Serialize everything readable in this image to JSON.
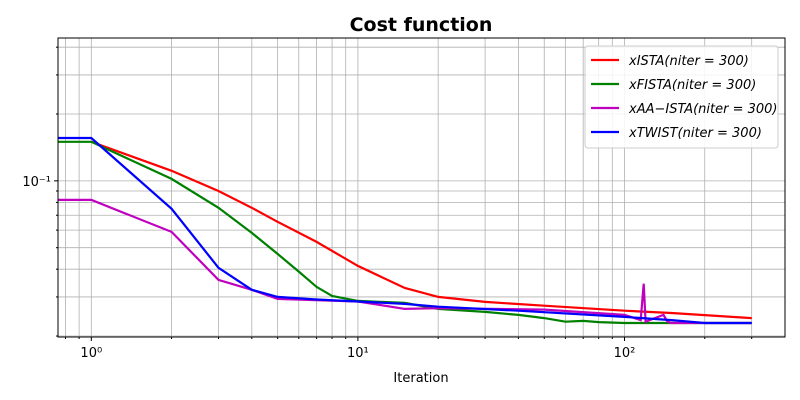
{
  "chart_data": {
    "type": "line",
    "title": "Cost function",
    "x_label": "Iteration",
    "xscale": "log",
    "yscale": "log",
    "grid": "both",
    "legend": "upper right",
    "xlim": [
      0.75,
      400
    ],
    "ylim": [
      0.0198,
      0.44
    ],
    "xticks": [
      {
        "value": 1,
        "label": "10⁰"
      },
      {
        "value": 10,
        "label": "10¹"
      },
      {
        "value": 100,
        "label": "10²"
      }
    ],
    "yticks": [
      {
        "value": 0.1,
        "label": "10⁻¹"
      }
    ],
    "series": [
      {
        "name": "xISTA(niter = 300)",
        "color": "#ff0000",
        "x": [
          1,
          2,
          3,
          4,
          5,
          7,
          10,
          15,
          20,
          30,
          50,
          100,
          150,
          300
        ],
        "values": [
          0.15,
          0.111,
          0.09,
          0.0756,
          0.0654,
          0.0531,
          0.0414,
          0.0329,
          0.03,
          0.0285,
          0.0274,
          0.026,
          0.0254,
          0.0241
        ]
      },
      {
        "name": "xFISTA(niter = 300)",
        "color": "#008000",
        "x": [
          0.75,
          1,
          2,
          3,
          4,
          5,
          6,
          7,
          8,
          10,
          15,
          20,
          30,
          40,
          50,
          60,
          70,
          80,
          100,
          300
        ],
        "values": [
          0.15,
          0.15,
          0.102,
          0.0756,
          0.0583,
          0.0469,
          0.039,
          0.0333,
          0.0303,
          0.0288,
          0.0282,
          0.0265,
          0.0257,
          0.0249,
          0.0241,
          0.0232,
          0.0234,
          0.0231,
          0.0229,
          0.0229
        ]
      },
      {
        "name": "xAA−ISTA(niter = 300)",
        "color": "#bf00bf",
        "x": [
          0.75,
          1,
          2,
          3,
          4,
          5,
          10,
          15,
          20,
          50,
          100,
          115,
          118,
          120,
          140,
          145,
          150,
          300
        ],
        "values": [
          0.0821,
          0.0821,
          0.0589,
          0.0358,
          0.0323,
          0.0294,
          0.0286,
          0.0265,
          0.0267,
          0.0263,
          0.0249,
          0.0236,
          0.0344,
          0.0232,
          0.0249,
          0.0232,
          0.0229,
          0.0229
        ]
      },
      {
        "name": "xTWIST(niter = 300)",
        "color": "#0000ff",
        "x": [
          0.75,
          1,
          2,
          3,
          4,
          5,
          7,
          10,
          15,
          20,
          40,
          100,
          150,
          200,
          300
        ],
        "values": [
          0.156,
          0.156,
          0.0748,
          0.0406,
          0.0323,
          0.03,
          0.0292,
          0.0286,
          0.0279,
          0.0271,
          0.026,
          0.0244,
          0.0236,
          0.0229,
          0.0229
        ]
      }
    ]
  }
}
